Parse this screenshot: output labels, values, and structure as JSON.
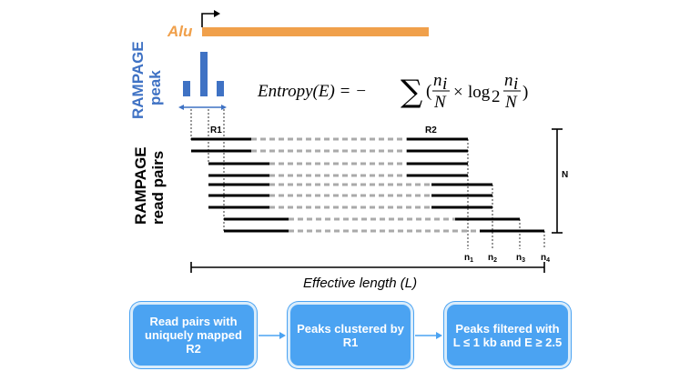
{
  "labels": {
    "alu": "Alu",
    "rampage_peak_line1": "RAMPAGE",
    "rampage_peak_line2": "peak",
    "rampage_reads_line1": "RAMPAGE",
    "rampage_reads_line2": "read pairs",
    "r1": "R1",
    "r2": "R2",
    "n_total": "N",
    "n1": "n",
    "n1_sub": "1",
    "n2": "n",
    "n2_sub": "2",
    "n3": "n",
    "n3_sub": "3",
    "n4": "n",
    "n4_sub": "4",
    "effective_length": "Effective length (L)"
  },
  "formula": {
    "lhs": "Entropy(E) = −",
    "sum": "∑",
    "open": "(",
    "frac1_num": "n",
    "frac1_num_sub": "i",
    "frac1_den": "N",
    "times": "×",
    "log": "log",
    "log_sub": "2",
    "frac2_num": "n",
    "frac2_num_sub": "i",
    "frac2_den": "N",
    "close": ")"
  },
  "flow": [
    {
      "text": "Read pairs with uniquely mapped R2"
    },
    {
      "text": "Peaks clustered by R1"
    },
    {
      "text": "Peaks filtered with L ≤ 1 kb and E ≥ 2.5"
    }
  ],
  "colors": {
    "alu": "#f0a04b",
    "peak": "#3f72c4",
    "box": "#4ba3f2",
    "dashed": "#aaaaaa"
  }
}
